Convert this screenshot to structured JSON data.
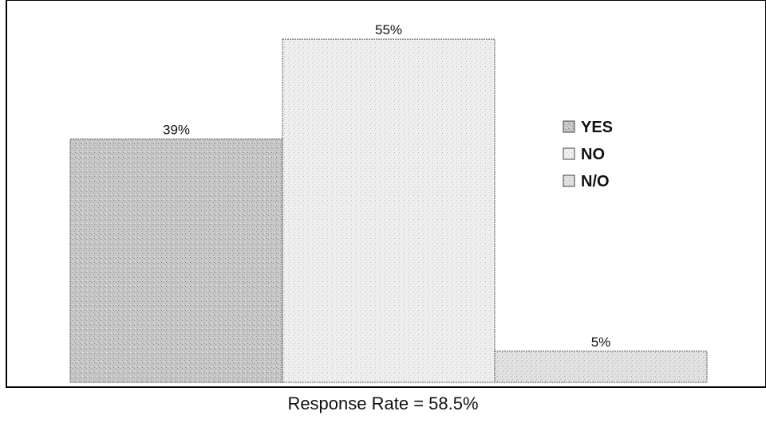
{
  "chart_data": {
    "type": "bar",
    "categories": [
      "YES",
      "NO",
      "N/O"
    ],
    "values": [
      39,
      55,
      5
    ],
    "value_labels": [
      "39%",
      "55%",
      "5%"
    ],
    "ylim": [
      0,
      60
    ],
    "grid": false,
    "legend": {
      "entries": [
        "YES",
        "NO",
        "N/O"
      ],
      "placement": "right"
    },
    "series_colors": [
      "#c4c4c4",
      "#ececec",
      "#dedede"
    ],
    "caption": "Response Rate = 58.5%"
  }
}
